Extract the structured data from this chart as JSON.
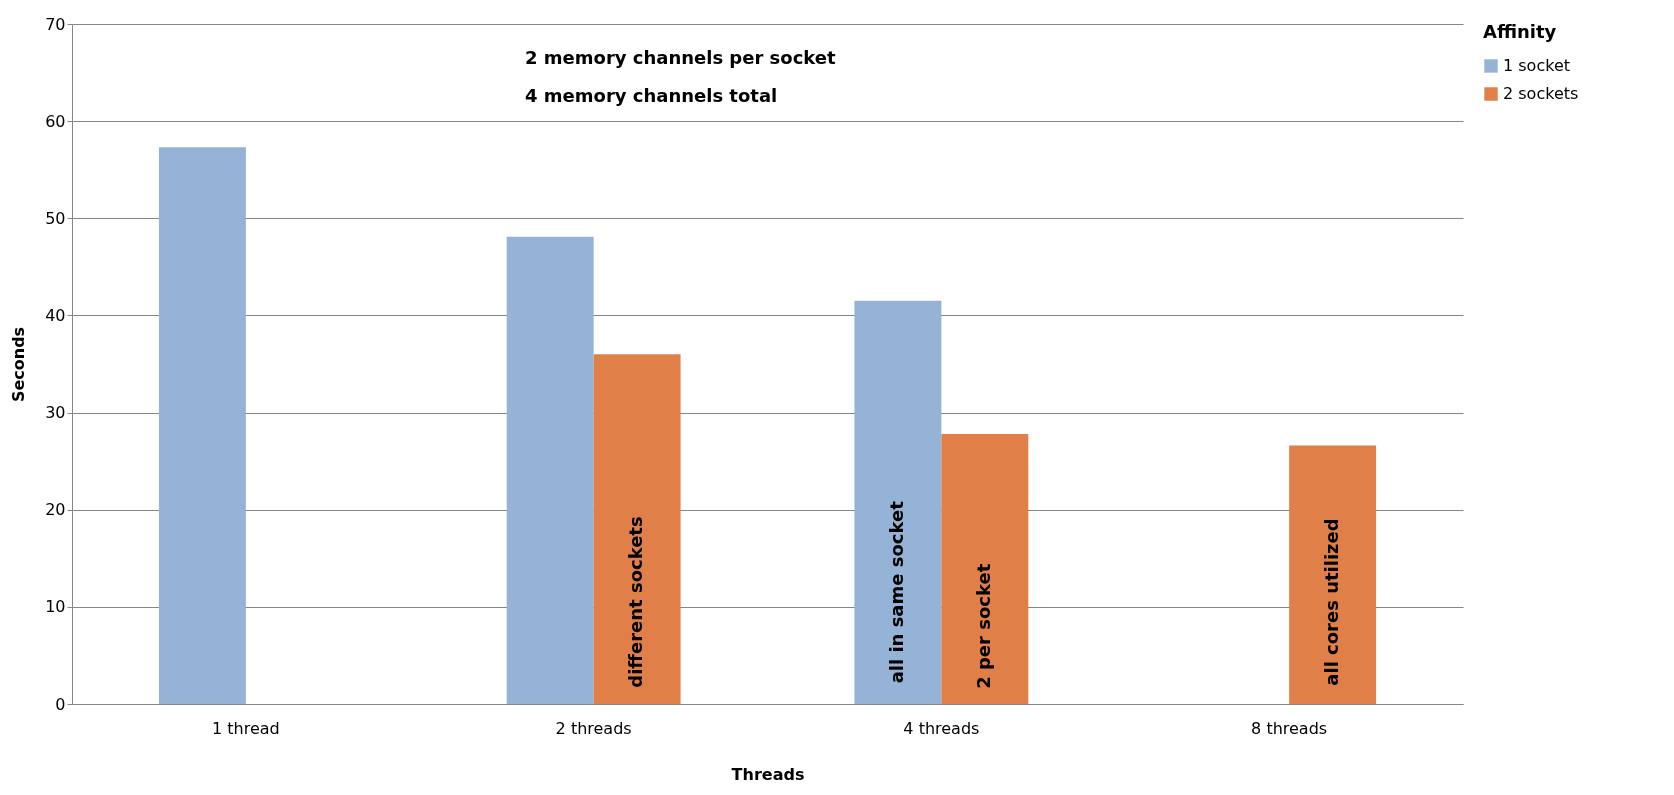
{
  "chart_data": {
    "type": "bar",
    "xlabel": "Threads",
    "ylabel": "Seconds",
    "legend_title": "Affinity",
    "legend": "right",
    "grid": "y",
    "categories": [
      "1 thread",
      "2 threads",
      "4 threads",
      "8 threads"
    ],
    "series": [
      {
        "name": "1 socket",
        "color": "#95b3d7",
        "values": [
          57.3,
          48.1,
          41.5,
          null
        ]
      },
      {
        "name": "2 sockets",
        "color": "#e07f47",
        "values": [
          null,
          36,
          27.8,
          26.6
        ]
      }
    ],
    "ylim": [
      0,
      70
    ],
    "yticks": [
      0,
      10,
      20,
      30,
      40,
      50,
      60,
      70
    ],
    "annotations": [
      "2 memory channels per socket",
      "4 memory channels total",
      {
        "text": "different sockets",
        "x": "2 threads",
        "y": 10.5
      },
      {
        "text": "all in same socket",
        "x": "4 threads",
        "y": 11.5
      },
      {
        "text": "2 per socket",
        "x": "4 threads",
        "y": 8
      },
      {
        "text": "all cores utilized",
        "x": "8 threads",
        "y": 10.5
      }
    ]
  }
}
